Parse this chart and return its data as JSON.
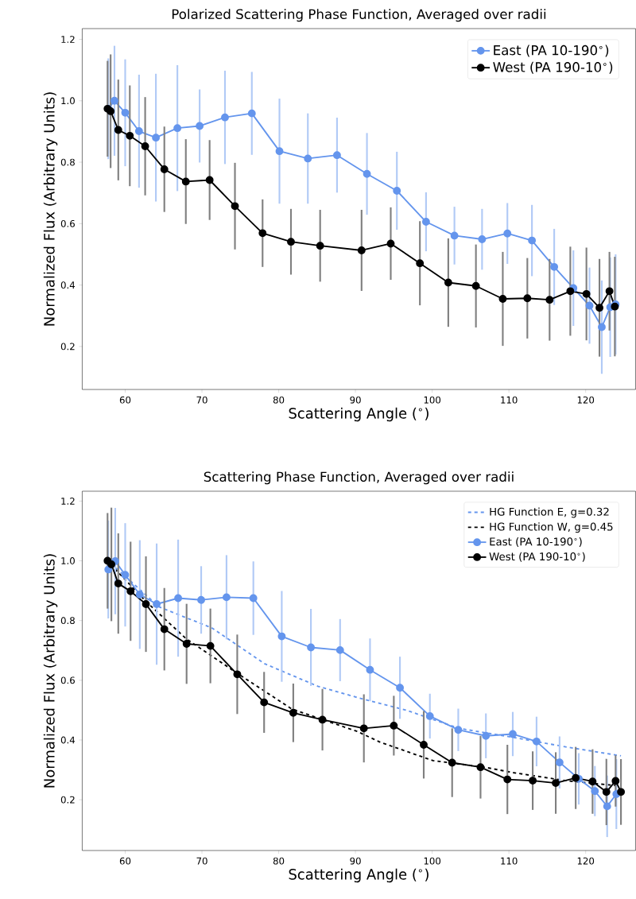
{
  "chart_data": [
    {
      "type": "line",
      "title": "Polarized Scattering Phase Function, Averaged over radii",
      "xlabel": "Scattering Angle ($^{∘}$)",
      "ylabel": "Normalized Flux (Arbitrary Units)",
      "xlim": [
        54.4,
        126.5
      ],
      "ylim": [
        0.06,
        1.235
      ],
      "xticks": [
        60,
        70,
        80,
        90,
        100,
        110,
        120
      ],
      "yticks": [
        0.2,
        0.4,
        0.6,
        0.8,
        {
          "value": 1.0,
          "label": "1.0"
        },
        1.2
      ],
      "legend": "top right",
      "marker": "circle",
      "line_style": "solid",
      "series": [
        {
          "name": "East (PA 10-190$^{∘}$)",
          "color": "#6495ed",
          "x": [
            57.8,
            58.6,
            60.0,
            61.8,
            64.0,
            66.8,
            69.7,
            73.0,
            76.5,
            80.1,
            83.8,
            87.6,
            91.5,
            95.4,
            99.2,
            102.9,
            106.5,
            109.8,
            113.0,
            115.9,
            118.4,
            120.5,
            122.1,
            123.2,
            123.9
          ],
          "values": [
            0.974,
            1.0,
            0.961,
            0.901,
            0.88,
            0.911,
            0.918,
            0.946,
            0.959,
            0.836,
            0.812,
            0.823,
            0.762,
            0.707,
            0.606,
            0.561,
            0.549,
            0.568,
            0.545,
            0.459,
            0.39,
            0.333,
            0.263,
            0.328,
            0.337
          ],
          "errors": [
            0.164,
            0.179,
            0.174,
            0.184,
            0.208,
            0.205,
            0.119,
            0.152,
            0.135,
            0.171,
            0.147,
            0.122,
            0.133,
            0.127,
            0.096,
            0.094,
            0.099,
            0.099,
            0.116,
            0.124,
            0.123,
            0.124,
            0.152,
            0.162,
            0.163
          ]
        },
        {
          "name": "West (PA 190-10$^{∘}$)",
          "color": "#000000",
          "x": [
            57.7,
            58.1,
            59.1,
            60.6,
            62.6,
            65.1,
            67.9,
            71.0,
            74.3,
            77.9,
            81.6,
            85.4,
            90.8,
            94.6,
            98.4,
            102.1,
            105.7,
            109.2,
            112.4,
            115.3,
            118.0,
            120.1,
            121.8,
            123.1,
            123.8
          ],
          "values": [
            0.974,
            0.966,
            0.905,
            0.886,
            0.852,
            0.777,
            0.737,
            0.742,
            0.657,
            0.569,
            0.541,
            0.528,
            0.513,
            0.535,
            0.471,
            0.408,
            0.397,
            0.355,
            0.357,
            0.352,
            0.38,
            0.371,
            0.326,
            0.38,
            0.33
          ],
          "errors": [
            0.156,
            0.185,
            0.164,
            0.164,
            0.16,
            0.139,
            0.138,
            0.13,
            0.141,
            0.11,
            0.107,
            0.117,
            0.132,
            0.118,
            0.137,
            0.144,
            0.135,
            0.153,
            0.131,
            0.133,
            0.145,
            0.151,
            0.159,
            0.128,
            0.162
          ]
        }
      ]
    },
    {
      "type": "line",
      "title": "Scattering Phase Function, Averaged over radii",
      "xlabel": "Scattering Angle ($^{∘}$)",
      "ylabel": "Normalized Flux (Arbitrary Units)",
      "xlim": [
        54.4,
        126.5
      ],
      "ylim": [
        0.03,
        1.233
      ],
      "xticks": [
        60,
        70,
        80,
        90,
        100,
        110,
        120
      ],
      "yticks": [
        0.2,
        0.4,
        0.6,
        0.8,
        {
          "value": 1.0,
          "label": "1.0"
        },
        1.2
      ],
      "legend": "top right",
      "marker": "circle",
      "line_style": "solid",
      "series": [
        {
          "name": "HG Function E, g=0.32",
          "color": "#6495ed",
          "line_style": "dashed",
          "marker": "none",
          "x": [
            58.2,
            64.4,
            71.3,
            78.2,
            85.1,
            90.3,
            96.6,
            103.5,
            110.5,
            117.4,
            124.6
          ],
          "values": [
            0.99,
            0.846,
            0.775,
            0.655,
            0.58,
            0.542,
            0.5,
            0.439,
            0.409,
            0.377,
            0.347
          ]
        },
        {
          "name": "HG Function W, g=0.45",
          "color": "#000000",
          "line_style": "dashed",
          "marker": "none",
          "x": [
            58.1,
            62.7,
            67.9,
            74.8,
            81.7,
            90.3,
            93.2,
            100.1,
            107.0,
            110.5,
            117.4,
            124.5
          ],
          "values": [
            0.988,
            0.864,
            0.74,
            0.62,
            0.504,
            0.428,
            0.393,
            0.331,
            0.308,
            0.291,
            0.264,
            0.246
          ]
        },
        {
          "name": "East (PA 10-190$^{∘}$)",
          "color": "#6495ed",
          "x": [
            57.8,
            58.7,
            60.0,
            61.9,
            64.1,
            66.9,
            69.9,
            73.2,
            76.7,
            80.4,
            84.2,
            88.0,
            91.9,
            95.8,
            99.7,
            103.4,
            107.0,
            110.5,
            113.6,
            116.6,
            119.1,
            121.2,
            122.8,
            124.0
          ],
          "values": [
            0.971,
            0.999,
            0.953,
            0.887,
            0.855,
            0.875,
            0.869,
            0.878,
            0.875,
            0.747,
            0.71,
            0.701,
            0.635,
            0.575,
            0.48,
            0.434,
            0.414,
            0.42,
            0.395,
            0.325,
            0.27,
            0.229,
            0.178,
            0.219
          ],
          "errors": [
            0.164,
            0.178,
            0.173,
            0.182,
            0.203,
            0.196,
            0.113,
            0.141,
            0.123,
            0.152,
            0.129,
            0.104,
            0.105,
            0.104,
            0.075,
            0.071,
            0.075,
            0.074,
            0.083,
            0.087,
            0.086,
            0.084,
            0.103,
            0.117
          ]
        },
        {
          "name": "West (PA 190-10$^{∘}$)",
          "color": "#000000",
          "x": [
            57.7,
            58.2,
            59.1,
            60.7,
            62.7,
            65.1,
            68.0,
            71.1,
            74.6,
            78.1,
            81.9,
            85.7,
            91.1,
            95.0,
            98.9,
            102.6,
            106.3,
            109.8,
            113.1,
            116.1,
            118.7,
            120.9,
            122.7,
            123.9,
            124.6
          ],
          "values": [
            1.0,
            0.988,
            0.924,
            0.898,
            0.855,
            0.771,
            0.722,
            0.715,
            0.62,
            0.526,
            0.491,
            0.468,
            0.439,
            0.448,
            0.384,
            0.324,
            0.309,
            0.268,
            0.264,
            0.256,
            0.273,
            0.261,
            0.226,
            0.263,
            0.226
          ],
          "errors": [
            0.16,
            0.19,
            0.168,
            0.166,
            0.16,
            0.138,
            0.134,
            0.125,
            0.133,
            0.102,
            0.098,
            0.103,
            0.114,
            0.1,
            0.113,
            0.115,
            0.105,
            0.116,
            0.098,
            0.103,
            0.104,
            0.108,
            0.111,
            0.086,
            0.11
          ]
        }
      ]
    }
  ]
}
